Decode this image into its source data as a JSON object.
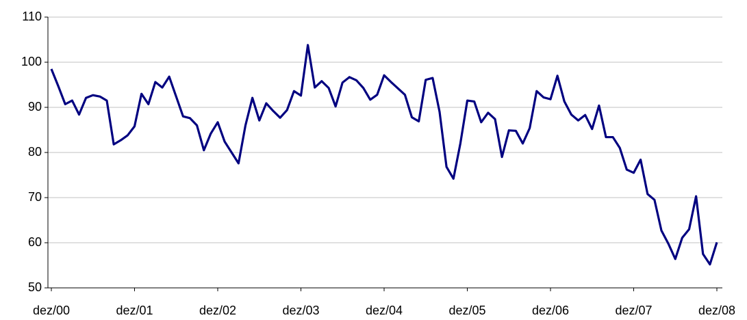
{
  "chart_data": {
    "type": "line",
    "categories": [
      "dez/00",
      null,
      null,
      null,
      null,
      null,
      null,
      null,
      null,
      null,
      null,
      null,
      "dez/01",
      null,
      null,
      null,
      null,
      null,
      null,
      null,
      null,
      null,
      null,
      null,
      "dez/02",
      null,
      null,
      null,
      null,
      null,
      null,
      null,
      null,
      null,
      null,
      null,
      "dez/03",
      null,
      null,
      null,
      null,
      null,
      null,
      null,
      null,
      null,
      null,
      null,
      "dez/04",
      null,
      null,
      null,
      null,
      null,
      null,
      null,
      null,
      null,
      null,
      null,
      "dez/05",
      null,
      null,
      null,
      null,
      null,
      null,
      null,
      null,
      null,
      null,
      null,
      "dez/06",
      null,
      null,
      null,
      null,
      null,
      null,
      null,
      null,
      null,
      null,
      null,
      "dez/07",
      null,
      null,
      null,
      null,
      null,
      null,
      null,
      null,
      null,
      null,
      null,
      "dez/08"
    ],
    "series": [
      {
        "color": "#000080",
        "values": [
          98.5,
          94.7,
          90.7,
          91.5,
          88.4,
          92.1,
          92.7,
          92.4,
          91.5,
          81.8,
          82.7,
          83.8,
          85.8,
          93,
          90.7,
          95.6,
          94.4,
          96.8,
          92.4,
          88,
          87.6,
          86,
          80.5,
          84.2,
          86.7,
          82.4,
          80,
          77.6,
          86,
          92.1,
          87.1,
          90.9,
          89.2,
          87.7,
          89.4,
          93.6,
          92.6,
          103.8,
          94.4,
          95.8,
          94.3,
          90.2,
          95.5,
          96.7,
          96,
          94.3,
          91.7,
          92.8,
          97.1,
          95.6,
          94.2,
          92.8,
          87.8,
          86.9,
          96.1,
          96.5,
          89,
          76.8,
          74.2,
          82,
          91.5,
          91.3,
          86.7,
          88.8,
          87.4,
          79,
          84.9,
          84.8,
          82,
          85.4,
          93.6,
          92.2,
          91.8,
          97,
          91.3,
          88.4,
          87.1,
          88.3,
          85.2,
          90.4,
          83.4,
          83.4,
          81,
          76.2,
          75.5,
          78.4,
          70.8,
          69.5,
          62.7,
          59.8,
          56.4,
          61.1,
          63,
          70.3,
          57.5,
          55.2,
          60.1
        ]
      }
    ],
    "ylim": [
      50,
      110
    ],
    "yticks": [
      50,
      60,
      70,
      80,
      90,
      100,
      110
    ],
    "grid": true
  }
}
